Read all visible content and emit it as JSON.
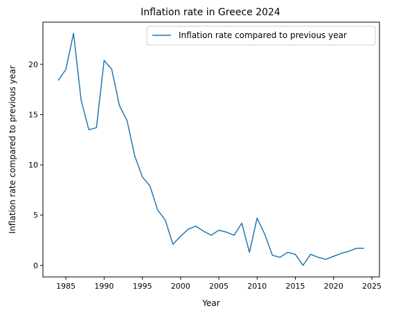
{
  "chart_data": {
    "type": "line",
    "title": "Inflation rate in Greece 2024",
    "xlabel": "Year",
    "ylabel": "Inflation rate compared to previous year",
    "xlim": [
      1982,
      2026
    ],
    "ylim": [
      -1.15,
      24.2
    ],
    "xticks": [
      1985,
      1990,
      1995,
      2000,
      2005,
      2010,
      2015,
      2020,
      2025
    ],
    "yticks": [
      0,
      5,
      10,
      15,
      20
    ],
    "grid": false,
    "legend_position": "top-right",
    "series": [
      {
        "name": "Inflation rate compared to previous year",
        "color": "#1f77b4",
        "x": [
          1984,
          1985,
          1986,
          1987,
          1988,
          1989,
          1990,
          1991,
          1992,
          1993,
          1994,
          1995,
          1996,
          1997,
          1998,
          1999,
          2000,
          2001,
          2002,
          2003,
          2004,
          2005,
          2006,
          2007,
          2008,
          2009,
          2010,
          2011,
          2012,
          2013,
          2014,
          2015,
          2016,
          2017,
          2018,
          2019,
          2020,
          2021,
          2022,
          2023,
          2024
        ],
        "y": [
          18.4,
          19.5,
          23.1,
          16.4,
          13.5,
          13.7,
          20.4,
          19.5,
          15.9,
          14.4,
          10.9,
          8.8,
          7.9,
          5.5,
          4.5,
          2.1,
          2.9,
          3.6,
          3.9,
          3.4,
          3.0,
          3.5,
          3.3,
          3.0,
          4.2,
          1.3,
          4.7,
          3.1,
          1.0,
          0.8,
          1.3,
          1.1,
          0.0,
          1.1,
          0.8,
          0.6,
          0.9,
          1.2,
          1.4,
          1.7,
          1.7
        ]
      }
    ]
  }
}
